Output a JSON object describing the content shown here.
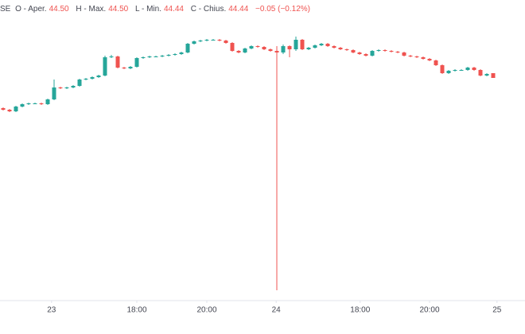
{
  "header": {
    "symbol": "SE",
    "items": [
      {
        "label": "O - Aper.",
        "value": "44.50"
      },
      {
        "label": "H - Max.",
        "value": "44.50"
      },
      {
        "label": "L - Min.",
        "value": "44.44"
      },
      {
        "label": "C - Chius.",
        "value": "44.44"
      }
    ],
    "change": "−0.05 (−0.12%)"
  },
  "chart_data": {
    "type": "candlestick",
    "up_color": "#26a69a",
    "down_color": "#ef5350",
    "xlim": [
      -0.5,
      82
    ],
    "ylim": [
      41.64,
      45.42
    ],
    "xticks": [
      {
        "value": 7.6,
        "label": "23"
      },
      {
        "value": 21,
        "label": "18:00"
      },
      {
        "value": 32,
        "label": "20:00"
      },
      {
        "value": 42.9,
        "label": "24"
      },
      {
        "value": 56.1,
        "label": "18:00"
      },
      {
        "value": 67,
        "label": "20:00"
      },
      {
        "value": 77.6,
        "label": "25"
      }
    ],
    "open": [
      44.06,
      44.04,
      44.02,
      44.08,
      44.11,
      44.12,
      44.12,
      44.11,
      44.17,
      44.32,
      44.31,
      44.32,
      44.34,
      44.42,
      44.43,
      44.45,
      44.47,
      44.7,
      44.71,
      44.57,
      44.56,
      44.58,
      44.69,
      44.7,
      44.71,
      44.71,
      44.72,
      44.73,
      44.74,
      44.76,
      44.87,
      44.9,
      44.91,
      44.92,
      44.92,
      44.91,
      44.88,
      44.78,
      44.76,
      44.81,
      44.84,
      44.83,
      44.8,
      44.78,
      44.76,
      44.84,
      44.8,
      44.92,
      44.8,
      44.82,
      44.85,
      44.87,
      44.84,
      44.82,
      44.8,
      44.79,
      44.76,
      44.74,
      44.72,
      44.78,
      44.79,
      44.78,
      44.77,
      44.76,
      44.72,
      44.71,
      44.7,
      44.68,
      44.66,
      44.6,
      44.5,
      44.53,
      44.54,
      44.54,
      44.57,
      44.54,
      44.47,
      44.5
    ],
    "high": [
      44.07,
      44.05,
      44.09,
      44.12,
      44.13,
      44.13,
      44.13,
      44.18,
      44.42,
      44.33,
      44.33,
      44.35,
      44.43,
      44.44,
      44.46,
      44.48,
      44.72,
      44.73,
      44.72,
      44.58,
      44.59,
      44.7,
      44.71,
      44.72,
      44.72,
      44.73,
      44.74,
      44.75,
      44.77,
      44.88,
      44.91,
      44.92,
      44.93,
      44.93,
      44.93,
      44.92,
      44.89,
      44.79,
      44.82,
      44.85,
      44.85,
      44.84,
      44.81,
      44.84,
      44.86,
      44.85,
      44.96,
      44.93,
      44.83,
      44.86,
      44.88,
      44.88,
      44.85,
      44.83,
      44.81,
      44.8,
      44.77,
      44.75,
      44.79,
      44.8,
      44.8,
      44.79,
      44.78,
      44.77,
      44.73,
      44.72,
      44.71,
      44.69,
      44.67,
      44.61,
      44.54,
      44.55,
      44.55,
      44.58,
      44.58,
      44.55,
      44.5,
      44.5
    ],
    "low": [
      44.03,
      44.01,
      44.01,
      44.07,
      44.1,
      44.11,
      44.1,
      44.1,
      44.16,
      44.3,
      44.3,
      44.31,
      44.33,
      44.41,
      44.42,
      44.44,
      44.46,
      44.69,
      44.56,
      44.55,
      44.55,
      44.57,
      44.68,
      44.69,
      44.7,
      44.7,
      44.71,
      44.72,
      44.73,
      44.75,
      44.86,
      44.89,
      44.9,
      44.91,
      44.9,
      44.87,
      44.77,
      44.75,
      44.75,
      44.8,
      44.82,
      44.79,
      44.77,
      41.77,
      44.74,
      44.7,
      44.78,
      44.79,
      44.79,
      44.81,
      44.84,
      44.83,
      44.81,
      44.79,
      44.78,
      44.75,
      44.73,
      44.71,
      44.71,
      44.77,
      44.77,
      44.76,
      44.75,
      44.71,
      44.7,
      44.69,
      44.67,
      44.65,
      44.59,
      44.49,
      44.49,
      44.52,
      44.53,
      44.53,
      44.53,
      44.46,
      44.46,
      44.44
    ],
    "close": [
      44.04,
      44.02,
      44.08,
      44.11,
      44.12,
      44.12,
      44.11,
      44.17,
      44.32,
      44.31,
      44.32,
      44.34,
      44.42,
      44.43,
      44.45,
      44.47,
      44.7,
      44.71,
      44.57,
      44.56,
      44.58,
      44.69,
      44.7,
      44.71,
      44.71,
      44.72,
      44.73,
      44.74,
      44.76,
      44.87,
      44.9,
      44.91,
      44.92,
      44.92,
      44.91,
      44.88,
      44.78,
      44.76,
      44.81,
      44.84,
      44.83,
      44.8,
      44.78,
      44.76,
      44.84,
      44.8,
      44.92,
      44.8,
      44.82,
      44.85,
      44.87,
      44.84,
      44.82,
      44.8,
      44.79,
      44.76,
      44.74,
      44.72,
      44.78,
      44.79,
      44.78,
      44.77,
      44.76,
      44.72,
      44.71,
      44.7,
      44.68,
      44.66,
      44.6,
      44.5,
      44.53,
      44.54,
      44.54,
      44.57,
      44.54,
      44.47,
      44.49,
      44.44
    ]
  }
}
